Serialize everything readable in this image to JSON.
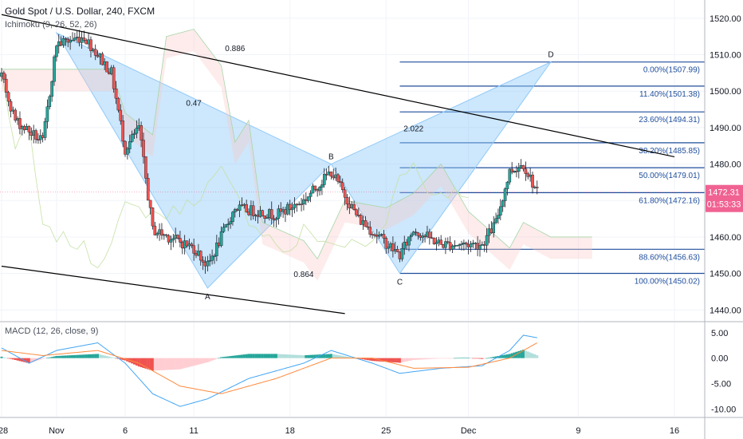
{
  "header": {
    "symbol_title": "Gold Spot / U.S. Dollar, 240, FXCM",
    "indicator_label": "Ichimoku (9, 26, 52, 26)"
  },
  "macd_label": "MACD (12, 26, close, 9)",
  "colors": {
    "bull": "#26a69a",
    "bear": "#ef5350",
    "fib_line": "#1f4e9c",
    "pattern_fill": "#90caf9",
    "trendline": "#000000",
    "price_tag": "#f06292",
    "macd_line": "#42a5f5",
    "signal_line": "#ff8a3d"
  },
  "chart_data": [
    {
      "type": "candlestick",
      "title": "Gold Spot / U.S. Dollar, 240, FXCM",
      "x_tick_labels": [
        "28",
        "Nov",
        "6",
        "11",
        "18",
        "25",
        "Dec",
        "9",
        "16"
      ],
      "x_tick_dates": [
        "2019-10-28",
        "2019-11-01",
        "2019-11-06",
        "2019-11-11",
        "2019-11-18",
        "2019-11-25",
        "2019-12-01",
        "2019-12-09",
        "2019-12-16"
      ],
      "ylim": [
        1437,
        1525
      ],
      "y_ticks": [
        1440,
        1450,
        1460,
        1470,
        1480,
        1490,
        1500,
        1510,
        1520
      ],
      "y_tick_labels": [
        "1440.00",
        "1450.00",
        "1460.00",
        "1470.00",
        "1480.00",
        "1490.00",
        "1500.00",
        "1510.00",
        "1520.00"
      ],
      "last_price": "1472.31",
      "countdown": "01:53:33",
      "price_waypoints": [
        {
          "date": "2019-10-28",
          "price": 1504
        },
        {
          "date": "2019-10-29",
          "price": 1492
        },
        {
          "date": "2019-10-31",
          "price": 1486
        },
        {
          "date": "2019-11-01",
          "price": 1513
        },
        {
          "date": "2019-11-03",
          "price": 1515
        },
        {
          "date": "2019-11-05",
          "price": 1505
        },
        {
          "date": "2019-11-06",
          "price": 1484
        },
        {
          "date": "2019-11-07",
          "price": 1490
        },
        {
          "date": "2019-11-08",
          "price": 1462
        },
        {
          "date": "2019-11-11",
          "price": 1457
        },
        {
          "date": "2019-11-12",
          "price": 1452
        },
        {
          "date": "2019-11-14",
          "price": 1468
        },
        {
          "date": "2019-11-17",
          "price": 1466
        },
        {
          "date": "2019-11-19",
          "price": 1470
        },
        {
          "date": "2019-11-21",
          "price": 1478
        },
        {
          "date": "2019-11-23",
          "price": 1465
        },
        {
          "date": "2019-11-26",
          "price": 1455
        },
        {
          "date": "2019-11-27",
          "price": 1462
        },
        {
          "date": "2019-11-29",
          "price": 1458
        },
        {
          "date": "2019-12-02",
          "price": 1458
        },
        {
          "date": "2019-12-03",
          "price": 1464
        },
        {
          "date": "2019-12-04",
          "price": 1478
        },
        {
          "date": "2019-12-05",
          "price": 1480
        },
        {
          "date": "2019-12-06",
          "price": 1472.31
        }
      ],
      "fibonacci_levels": [
        {
          "label": "0.00%(1507.99)",
          "price": 1507.99
        },
        {
          "label": "11.40%(1501.38)",
          "price": 1501.38
        },
        {
          "label": "23.60%(1494.31)",
          "price": 1494.31
        },
        {
          "label": "38.20%(1485.85)",
          "price": 1485.85
        },
        {
          "label": "50.00%(1479.01)",
          "price": 1479.01
        },
        {
          "label": "61.80%(1472.16)",
          "price": 1472.16
        },
        {
          "label": "88.60%(1456.63)",
          "price": 1456.63
        },
        {
          "label": "100.00%(1450.02)",
          "price": 1450.02
        }
      ],
      "fib_start_date": "2019-11-26",
      "pattern_points": [
        {
          "label": "",
          "date": "2019-11-01",
          "price": 1516
        },
        {
          "label": "A",
          "date": "2019-11-12",
          "price": 1446
        },
        {
          "label": "B",
          "date": "2019-11-21",
          "price": 1480
        },
        {
          "label": "C",
          "date": "2019-11-26",
          "price": 1450
        },
        {
          "label": "D",
          "date": "2019-12-07",
          "price": 1508
        }
      ],
      "pattern_ratios": [
        {
          "text": "0.886",
          "date": "2019-11-14",
          "price": 1511
        },
        {
          "text": "0.47",
          "date": "2019-11-11",
          "price": 1496
        },
        {
          "text": "2.022",
          "date": "2019-11-27",
          "price": 1489
        },
        {
          "text": "0.864",
          "date": "2019-11-19",
          "price": 1449
        }
      ],
      "trendlines": [
        {
          "from_date": "2019-10-28",
          "from_price": 1521,
          "to_date": "2019-12-16",
          "to_price": 1482
        },
        {
          "from_date": "2019-10-28",
          "from_price": 1452,
          "to_date": "2019-11-22",
          "to_price": 1439
        }
      ]
    },
    {
      "type": "histogram+line",
      "title": "MACD (12, 26, close, 9)",
      "ylim": [
        -11.5,
        7
      ],
      "y_ticks": [
        5,
        0,
        -5,
        -10
      ],
      "y_tick_labels": [
        "5.00",
        "0.00",
        "-5.00",
        "-10.00"
      ],
      "macd_waypoints": [
        {
          "date": "2019-10-28",
          "value": 2
        },
        {
          "date": "2019-10-30",
          "value": -1
        },
        {
          "date": "2019-11-01",
          "value": 1.5
        },
        {
          "date": "2019-11-04",
          "value": 3
        },
        {
          "date": "2019-11-06",
          "value": -1
        },
        {
          "date": "2019-11-08",
          "value": -7
        },
        {
          "date": "2019-11-10",
          "value": -9.5
        },
        {
          "date": "2019-11-12",
          "value": -8
        },
        {
          "date": "2019-11-15",
          "value": -4
        },
        {
          "date": "2019-11-19",
          "value": -1
        },
        {
          "date": "2019-11-21",
          "value": 1.5
        },
        {
          "date": "2019-11-24",
          "value": -1
        },
        {
          "date": "2019-11-26",
          "value": -3
        },
        {
          "date": "2019-11-29",
          "value": -2
        },
        {
          "date": "2019-12-02",
          "value": -1.5
        },
        {
          "date": "2019-12-04",
          "value": 1.5
        },
        {
          "date": "2019-12-05",
          "value": 4.5
        },
        {
          "date": "2019-12-06",
          "value": 4
        }
      ],
      "signal_waypoints": [
        {
          "date": "2019-10-28",
          "value": 1.5
        },
        {
          "date": "2019-10-31",
          "value": 0.5
        },
        {
          "date": "2019-11-04",
          "value": 1.5
        },
        {
          "date": "2019-11-07",
          "value": -1
        },
        {
          "date": "2019-11-10",
          "value": -5.5
        },
        {
          "date": "2019-11-13",
          "value": -7
        },
        {
          "date": "2019-11-17",
          "value": -4
        },
        {
          "date": "2019-11-21",
          "value": 0
        },
        {
          "date": "2019-11-24",
          "value": 0
        },
        {
          "date": "2019-11-27",
          "value": -2
        },
        {
          "date": "2019-12-01",
          "value": -1.8
        },
        {
          "date": "2019-12-04",
          "value": 0
        },
        {
          "date": "2019-12-06",
          "value": 3
        }
      ]
    }
  ]
}
